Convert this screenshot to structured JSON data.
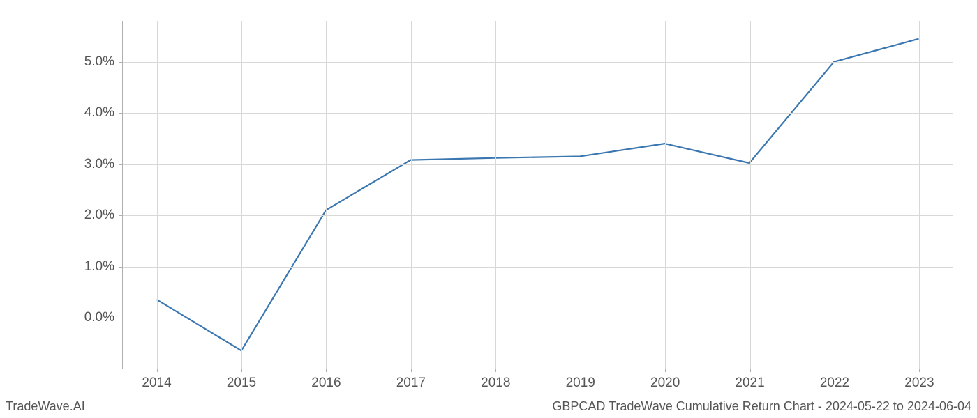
{
  "chart": {
    "type": "line",
    "x_labels": [
      "2014",
      "2015",
      "2016",
      "2017",
      "2018",
      "2019",
      "2020",
      "2021",
      "2022",
      "2023"
    ],
    "y_ticks": [
      0.0,
      1.0,
      2.0,
      3.0,
      4.0,
      5.0
    ],
    "y_tick_labels": [
      "0.0%",
      "1.0%",
      "2.0%",
      "3.0%",
      "4.0%",
      "5.0%"
    ],
    "ylim": [
      -1.0,
      5.8
    ],
    "xlim": [
      -0.4,
      9.4
    ],
    "data_points": [
      {
        "x": 0,
        "y": 0.35
      },
      {
        "x": 1,
        "y": -0.65
      },
      {
        "x": 2,
        "y": 2.1
      },
      {
        "x": 3,
        "y": 3.08
      },
      {
        "x": 4,
        "y": 3.12
      },
      {
        "x": 5,
        "y": 3.15
      },
      {
        "x": 6,
        "y": 3.4
      },
      {
        "x": 7,
        "y": 3.02
      },
      {
        "x": 8,
        "y": 5.0
      },
      {
        "x": 9,
        "y": 5.45
      }
    ],
    "line_color": "#3a76af",
    "line_width": 2.2,
    "grid_color": "#d8d8d8",
    "axis_color": "#b0b0b0",
    "tick_label_color": "#555555",
    "tick_fontsize": 19,
    "background_color": "#ffffff"
  },
  "footer": {
    "left": "TradeWave.AI",
    "right": "GBPCAD TradeWave Cumulative Return Chart - 2024-05-22 to 2024-06-04",
    "fontsize": 18,
    "color": "#555555"
  }
}
